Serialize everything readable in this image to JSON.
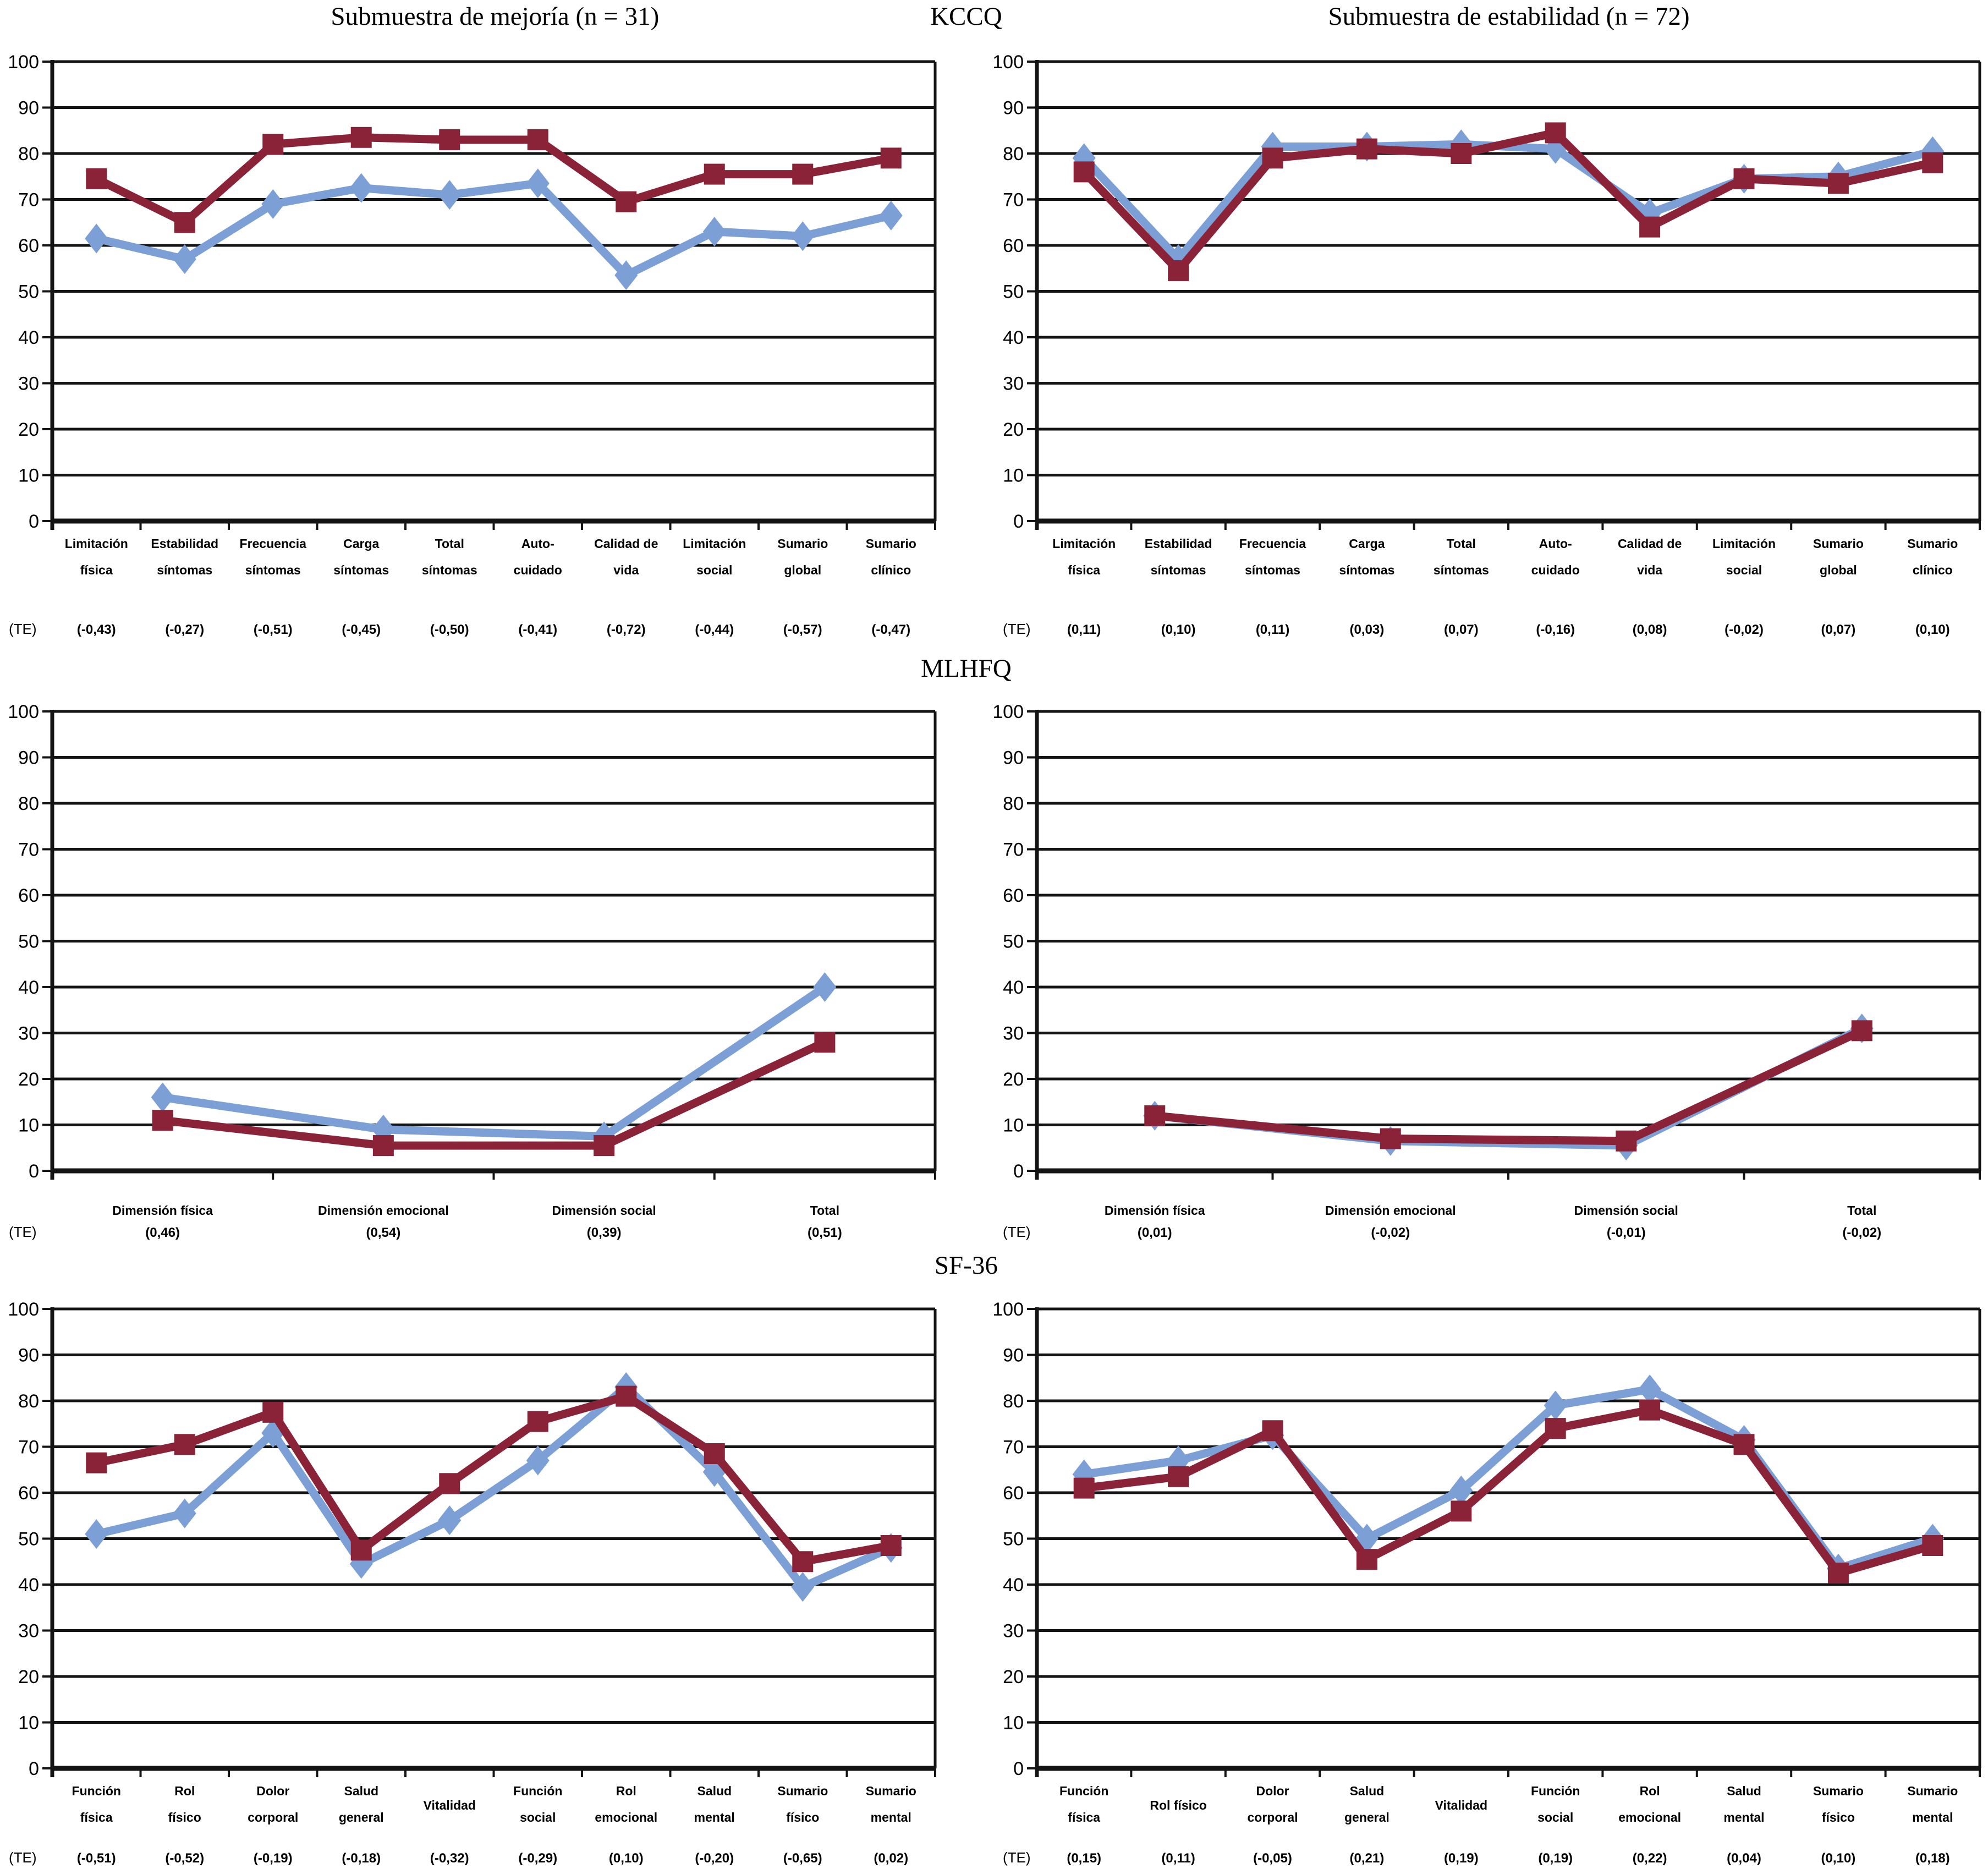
{
  "figure": {
    "te_prefix": "(TE)",
    "sections": [
      {
        "label": "KCCQ"
      },
      {
        "label": "MLHFQ"
      },
      {
        "label": "SF-36"
      }
    ],
    "subtitles": {
      "left": "Submuestra de mejoría (n = 31)",
      "right": "Submuestra de estabilidad (n = 72)"
    }
  },
  "colors": {
    "blue": "#7c9fd6",
    "red": "#8b2338",
    "axis": "#141414",
    "text": "#000000"
  },
  "chart_data": [
    {
      "id": "kccq-mejoria",
      "type": "line",
      "section": "KCCQ",
      "subtitle": "Submuestra de mejoría (n = 31)",
      "ylim": [
        0,
        100
      ],
      "ytick_step": 10,
      "grid": true,
      "legend_position": "none",
      "categories": [
        [
          "Limitación",
          "física"
        ],
        [
          "Estabilidad",
          "síntomas"
        ],
        [
          "Frecuencia",
          "síntomas"
        ],
        [
          "Carga",
          "síntomas"
        ],
        [
          "Total",
          "síntomas"
        ],
        [
          "Auto-",
          "cuidado"
        ],
        [
          "Calidad de",
          "vida"
        ],
        [
          "Limitación",
          "social"
        ],
        [
          "Sumario",
          "global"
        ],
        [
          "Sumario",
          "clínico"
        ]
      ],
      "series": [
        {
          "marker": "diamond",
          "color": "blue",
          "values": [
            61.5,
            57,
            69,
            72.5,
            71,
            73.5,
            53.5,
            63,
            62,
            66.5
          ]
        },
        {
          "marker": "square",
          "color": "red",
          "values": [
            74.5,
            65,
            82,
            83.5,
            83,
            83,
            69.5,
            75.5,
            75.5,
            79
          ]
        }
      ],
      "te": [
        "(-0,43)",
        "(-0,27)",
        "(-0,51)",
        "(-0,45)",
        "(-0,50)",
        "(-0,41)",
        "(-0,72)",
        "(-0,44)",
        "(-0,57)",
        "(-0,47)"
      ]
    },
    {
      "id": "kccq-estabilidad",
      "type": "line",
      "section": "KCCQ",
      "subtitle": "Submuestra de estabilidad (n = 72)",
      "ylim": [
        0,
        100
      ],
      "ytick_step": 10,
      "grid": true,
      "legend_position": "none",
      "categories": [
        [
          "Limitación",
          "física"
        ],
        [
          "Estabilidad",
          "síntomas"
        ],
        [
          "Frecuencia",
          "síntomas"
        ],
        [
          "Carga",
          "síntomas"
        ],
        [
          "Total",
          "síntomas"
        ],
        [
          "Auto-",
          "cuidado"
        ],
        [
          "Calidad de",
          "vida"
        ],
        [
          "Limitación",
          "social"
        ],
        [
          "Sumario",
          "global"
        ],
        [
          "Sumario",
          "clínico"
        ]
      ],
      "series": [
        {
          "marker": "diamond",
          "color": "blue",
          "values": [
            79,
            57,
            81.5,
            81.5,
            82,
            81,
            67,
            74.5,
            75,
            80.5
          ]
        },
        {
          "marker": "square",
          "color": "red",
          "values": [
            76,
            54.5,
            79,
            81,
            80,
            84.5,
            64,
            74.5,
            73.5,
            78
          ]
        }
      ],
      "te": [
        "(0,11)",
        "(0,10)",
        "(0,11)",
        "(0,03)",
        "(0,07)",
        "(-0,16)",
        "(0,08)",
        "(-0,02)",
        "(0,07)",
        "(0,10)"
      ]
    },
    {
      "id": "mlhfq-mejoria",
      "type": "line",
      "section": "MLHFQ",
      "ylim": [
        0,
        100
      ],
      "ytick_step": 10,
      "grid": true,
      "legend_position": "none",
      "categories": [
        [
          "Dimensión física"
        ],
        [
          "Dimensión emocional"
        ],
        [
          "Dimensión social"
        ],
        [
          "Total"
        ]
      ],
      "series": [
        {
          "marker": "diamond",
          "color": "blue",
          "values": [
            16,
            9,
            7.5,
            40
          ]
        },
        {
          "marker": "square",
          "color": "red",
          "values": [
            11,
            5.5,
            5.5,
            28
          ]
        }
      ],
      "te": [
        "(0,46)",
        "(0,54)",
        "(0,39)",
        "(0,51)"
      ]
    },
    {
      "id": "mlhfq-estabilidad",
      "type": "line",
      "section": "MLHFQ",
      "ylim": [
        0,
        100
      ],
      "ytick_step": 10,
      "grid": true,
      "legend_position": "none",
      "categories": [
        [
          "Dimensión física"
        ],
        [
          "Dimensión emocional"
        ],
        [
          "Dimensión social"
        ],
        [
          "Total"
        ]
      ],
      "series": [
        {
          "marker": "diamond",
          "color": "blue",
          "values": [
            12,
            6.5,
            5.5,
            31
          ]
        },
        {
          "marker": "square",
          "color": "red",
          "values": [
            12,
            7,
            6.5,
            30.5
          ]
        }
      ],
      "te": [
        "(0,01)",
        "(-0,02)",
        "(-0,01)",
        "(-0,02)"
      ]
    },
    {
      "id": "sf36-mejoria",
      "type": "line",
      "section": "SF-36",
      "ylim": [
        0,
        100
      ],
      "ytick_step": 10,
      "grid": true,
      "legend_position": "none",
      "categories": [
        [
          "Función",
          "física"
        ],
        [
          "Rol",
          "físico"
        ],
        [
          "Dolor",
          "corporal"
        ],
        [
          "Salud",
          "general"
        ],
        [
          "Vitalidad"
        ],
        [
          "Función",
          "social"
        ],
        [
          "Rol",
          "emocional"
        ],
        [
          "Salud",
          "mental"
        ],
        [
          "Sumario",
          "físico"
        ],
        [
          "Sumario",
          "mental"
        ]
      ],
      "series": [
        {
          "marker": "diamond",
          "color": "blue",
          "values": [
            51,
            55.5,
            73,
            44.5,
            54,
            67,
            83,
            64.5,
            39.5,
            48
          ]
        },
        {
          "marker": "square",
          "color": "red",
          "values": [
            66.5,
            70.5,
            77.5,
            47.5,
            62,
            75.5,
            81,
            68.5,
            45,
            48.5
          ]
        }
      ],
      "te": [
        "(-0,51)",
        "(-0,52)",
        "(-0,19)",
        "(-0,18)",
        "(-0,32)",
        "(-0,29)",
        "(0,10)",
        "(-0,20)",
        "(-0,65)",
        "(0,02)"
      ]
    },
    {
      "id": "sf36-estabilidad",
      "type": "line",
      "section": "SF-36",
      "ylim": [
        0,
        100
      ],
      "ytick_step": 10,
      "grid": true,
      "legend_position": "none",
      "categories": [
        [
          "Función",
          "física"
        ],
        [
          "Rol físico"
        ],
        [
          "Dolor",
          "corporal"
        ],
        [
          "Salud",
          "general"
        ],
        [
          "Vitalidad"
        ],
        [
          "Función",
          "social"
        ],
        [
          "Rol",
          "emocional"
        ],
        [
          "Salud",
          "mental"
        ],
        [
          "Sumario",
          "físico"
        ],
        [
          "Sumario",
          "mental"
        ]
      ],
      "series": [
        {
          "marker": "diamond",
          "color": "blue",
          "values": [
            64,
            67,
            72.5,
            50,
            60.5,
            79,
            82.5,
            71.5,
            43.5,
            50
          ]
        },
        {
          "marker": "square",
          "color": "red",
          "values": [
            61,
            63.5,
            73.5,
            45.5,
            56,
            74,
            78,
            70.5,
            42.5,
            48.5
          ]
        }
      ],
      "te": [
        "(0,15)",
        "(0,11)",
        "(-0,05)",
        "(0,21)",
        "(0,19)",
        "(0,19)",
        "(0,22)",
        "(0,04)",
        "(0,10)",
        "(0,18)"
      ]
    }
  ]
}
